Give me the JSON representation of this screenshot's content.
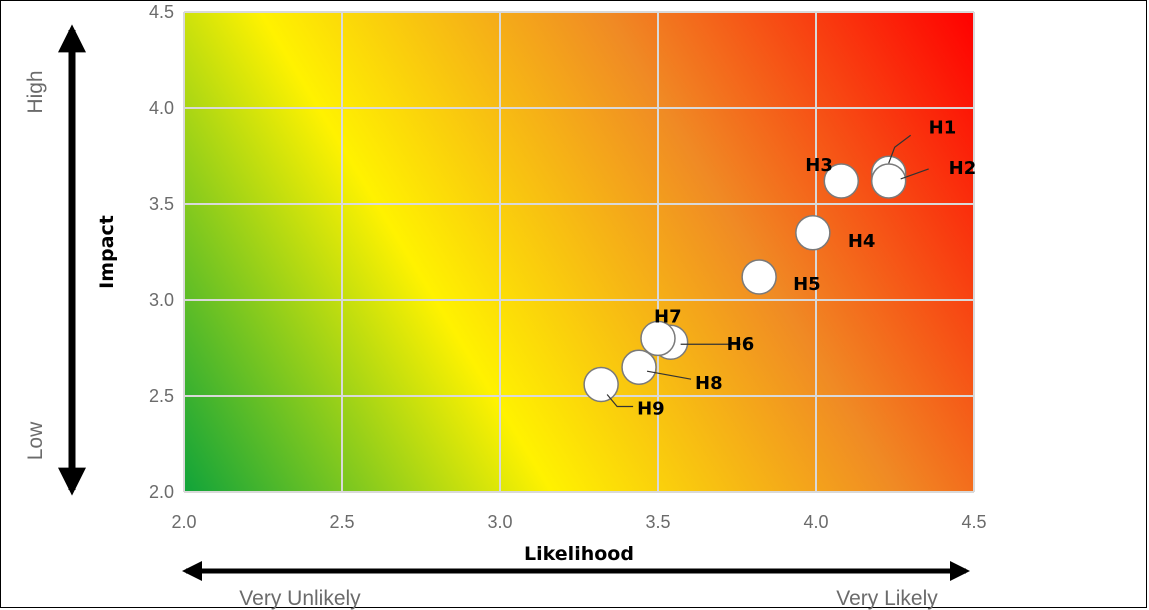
{
  "chart_data": {
    "type": "scatter",
    "xlabel": "Likelihood",
    "ylabel": "Impact",
    "xlim": [
      2.0,
      4.5
    ],
    "ylim": [
      2.0,
      4.5
    ],
    "x_ticks": [
      "2.0",
      "2.5",
      "3.0",
      "3.5",
      "4.0",
      "4.5"
    ],
    "y_ticks": [
      "2.0",
      "2.5",
      "3.0",
      "3.5",
      "4.0",
      "4.5"
    ],
    "grid": true,
    "background": "gradient green (bottom-left) to yellow to orange to red (top-right)",
    "x_scale_labels": {
      "low": "Very Unlikely",
      "high": "Very Likely"
    },
    "y_scale_labels": {
      "low": "Low",
      "high": "High"
    },
    "points": [
      {
        "label": "H1",
        "x": 4.23,
        "y": 3.66
      },
      {
        "label": "H2",
        "x": 4.23,
        "y": 3.62
      },
      {
        "label": "H3",
        "x": 4.08,
        "y": 3.62
      },
      {
        "label": "H4",
        "x": 3.99,
        "y": 3.35
      },
      {
        "label": "H5",
        "x": 3.82,
        "y": 3.12
      },
      {
        "label": "H6",
        "x": 3.54,
        "y": 2.78
      },
      {
        "label": "H7",
        "x": 3.5,
        "y": 2.8
      },
      {
        "label": "H8",
        "x": 3.44,
        "y": 2.65
      },
      {
        "label": "H9",
        "x": 3.32,
        "y": 2.56
      }
    ]
  },
  "colors": {
    "green": "#10a33a",
    "yellow": "#fff200",
    "orange": "#f08a24",
    "red": "#ff0000",
    "grid": "#d9d9d9",
    "marker_fill": "#ffffff"
  }
}
